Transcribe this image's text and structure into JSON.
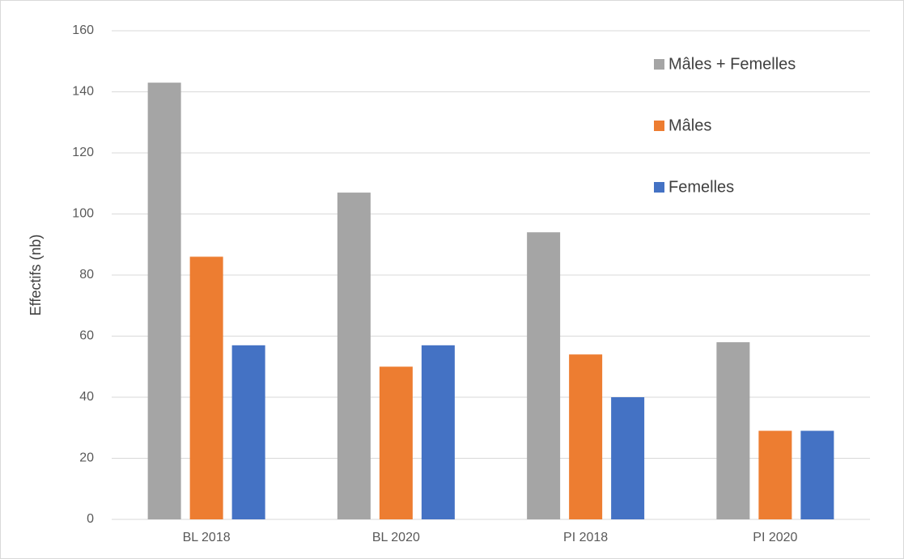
{
  "chart_data": {
    "type": "bar",
    "y_label": "Effectifs (nb)",
    "categories": [
      "BL 2018",
      "BL 2020",
      "PI 2018",
      "PI 2020"
    ],
    "series": [
      {
        "name": "Mâles + Femelles",
        "color": "#a5a5a5",
        "values": [
          143,
          107,
          94,
          58
        ]
      },
      {
        "name": "Mâles",
        "color": "#ed7d31",
        "values": [
          86,
          50,
          54,
          29
        ]
      },
      {
        "name": "Femelles",
        "color": "#4472c4",
        "values": [
          57,
          57,
          40,
          29
        ]
      }
    ],
    "ylim": [
      0,
      160
    ],
    "yticks": [
      0,
      20,
      40,
      60,
      80,
      100,
      120,
      140,
      160
    ],
    "grid": true,
    "legend": "top-right"
  }
}
